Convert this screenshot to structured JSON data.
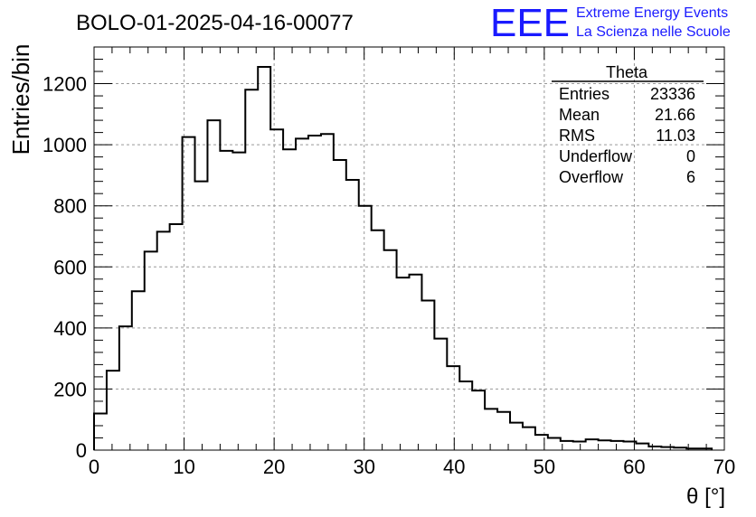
{
  "header": {
    "run_title": "BOLO-01-2025-04-16-00077",
    "logo_letters": "EEE",
    "logo_line1": "Extreme Energy Events",
    "logo_line2": "La Scienza nelle Scuole",
    "logo_color": "#1a1aff"
  },
  "stats": {
    "name": "Theta",
    "rows": [
      {
        "label": "Entries",
        "value": "23336"
      },
      {
        "label": "Mean",
        "value": "21.66"
      },
      {
        "label": "RMS",
        "value": "11.03"
      },
      {
        "label": "Underflow",
        "value": "0"
      },
      {
        "label": "Overflow",
        "value": "6"
      }
    ]
  },
  "chart_data": {
    "type": "histogram",
    "title": "BOLO-01-2025-04-16-00077",
    "xlabel": "θ [°]",
    "ylabel": "Entries/bin",
    "xlim": [
      0,
      70
    ],
    "ylim": [
      0,
      1320
    ],
    "grid": true,
    "bin_width": 1.4,
    "bin_start": 0,
    "values": [
      120,
      260,
      405,
      520,
      650,
      715,
      740,
      1025,
      880,
      1080,
      980,
      975,
      1180,
      1255,
      1050,
      985,
      1020,
      1030,
      1035,
      950,
      885,
      800,
      720,
      655,
      565,
      575,
      490,
      365,
      275,
      225,
      195,
      135,
      125,
      90,
      75,
      50,
      40,
      30,
      28,
      35,
      32,
      30,
      28,
      22,
      12,
      10,
      8,
      5,
      5
    ],
    "x_ticks": [
      0,
      10,
      20,
      30,
      40,
      50,
      60,
      70
    ],
    "x_tick_labels": [
      "0",
      "10",
      "20",
      "30",
      "40",
      "50",
      "60",
      "70"
    ],
    "y_ticks": [
      0,
      200,
      400,
      600,
      800,
      1000,
      1200
    ],
    "y_tick_labels": [
      "0",
      "200",
      "400",
      "600",
      "800",
      "1000",
      "1200"
    ]
  }
}
